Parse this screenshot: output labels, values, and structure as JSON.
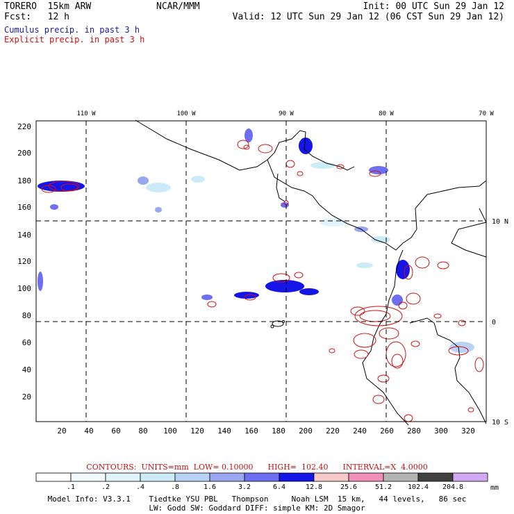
{
  "header": {
    "title": "TORERO  15km ARW",
    "forecast": "Fcst:   12 h",
    "source": "NCAR/MMM",
    "init": "Init: 00 UTC Sun 29 Jan 12",
    "valid": "Valid: 12 UTC Sun 29 Jan 12 (06 CST Sun 29 Jan 12)"
  },
  "legend": {
    "cumulus": "Cumulus precip. in past 3 h",
    "explicit": "Explicit precip. in past 3 h"
  },
  "map": {
    "lon_labels": [
      "110 W",
      "100 W",
      "90 W",
      "80 W",
      "70 W"
    ],
    "lat_labels": [
      "10 N",
      "0",
      "10 S"
    ],
    "y_ticks": [
      "220",
      "200",
      "180",
      "160",
      "140",
      "120",
      "100",
      "80",
      "60",
      "40",
      "20"
    ],
    "x_ticks": [
      "20",
      "40",
      "60",
      "80",
      "100",
      "120",
      "140",
      "160",
      "180",
      "200",
      "220",
      "240",
      "260",
      "280",
      "300",
      "320"
    ]
  },
  "contours": {
    "text": "CONTOURS:  UNITS=mm  LOW= 0.10000      HIGH=  102.40      INTERVAL=X  4.0000"
  },
  "colorbar": {
    "labels": [
      ".1",
      ".2",
      ".4",
      ".8",
      "1.6",
      "3.2",
      "6.4",
      "12.8",
      "25.6",
      "51.2",
      "102.4",
      "204.8"
    ],
    "unit": "mm",
    "colors": [
      "#ffffff",
      "#f2fbff",
      "#e2f4fb",
      "#cdeaf7",
      "#b8d3f5",
      "#9aa6ef",
      "#6e6ff0",
      "#1515e8",
      "#f7caca",
      "#f090b8",
      "#b4b4b4",
      "#404040",
      "#d2a8f2"
    ]
  },
  "footer": {
    "line1": "Model Info: V3.3.1    Tiedtke YSU PBL   Thompson     Noah LSM  15 km,   44 levels,   86 sec",
    "line2": "LW: Godd SW: Goddard DIFF: simple KM: 2D Smagor"
  }
}
